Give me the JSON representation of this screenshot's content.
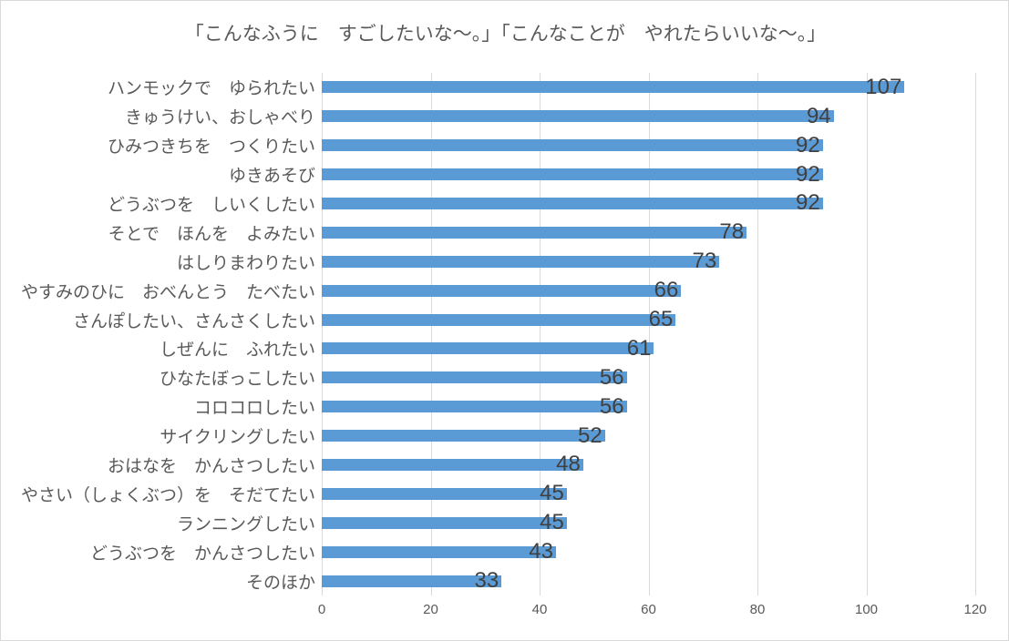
{
  "chart_data": {
    "type": "bar",
    "orientation": "horizontal",
    "title": "「こんなふうに　すごしたいな～。」「こんなことが　やれたらいいな～。」",
    "categories": [
      "ハンモックで　ゆられたい",
      "きゅうけい、おしゃべり",
      "ひみつきちを　つくりたい",
      "ゆきあそび",
      "どうぶつを　しいくしたい",
      "そとで　ほんを　よみたい",
      "はしりまわりたい",
      "やすみのひに　おべんとう　たべたい",
      "さんぽしたい、さんさくしたい",
      "しぜんに　ふれたい",
      "ひなたぼっこしたい",
      "コロコロしたい",
      "サイクリングしたい",
      "おはなを　かんさつしたい",
      "やさい（しょくぶつ）を　そだてたい",
      "ランニングしたい",
      "どうぶつを　かんさつしたい",
      "そのほか"
    ],
    "values": [
      107,
      94,
      92,
      92,
      92,
      78,
      73,
      66,
      65,
      61,
      56,
      56,
      52,
      48,
      45,
      45,
      43,
      33
    ],
    "xlabel": "",
    "ylabel": "",
    "xlim": [
      0,
      120
    ],
    "xticks": [
      0,
      20,
      40,
      60,
      80,
      100,
      120
    ],
    "grid": true,
    "legend": false,
    "data_label_position": "inside-end",
    "colors": {
      "bar": "#5b9bd5",
      "gridline": "#d9d9d9",
      "title_text": "#595959",
      "category_text": "#595959",
      "axis_text": "#595959",
      "data_label_text": "#404040",
      "background": "#ffffff",
      "border": "#d9d9d9"
    }
  }
}
